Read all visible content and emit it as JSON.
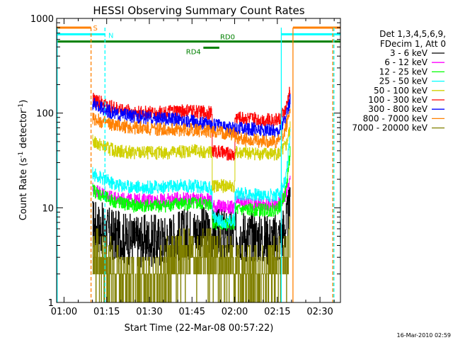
{
  "chart_data": {
    "type": "line",
    "title": "HESSI Observing Summary Count Rates",
    "xlabel": "Start Time (22-Mar-08 00:57:22)",
    "ylabel_main": "Count Rate (s",
    "ylabel_sup1": "-1",
    "ylabel_mid": " detector",
    "ylabel_sup2": "-1",
    "ylabel_end": ")",
    "yscale": "log",
    "ylim": [
      1,
      1000
    ],
    "xlim_minutes": [
      57.4,
      157.2
    ],
    "x_ticks": [
      {
        "min": 60,
        "label": "01:00"
      },
      {
        "min": 75,
        "label": "01:15"
      },
      {
        "min": 90,
        "label": "01:30"
      },
      {
        "min": 105,
        "label": "01:45"
      },
      {
        "min": 120,
        "label": "02:00"
      },
      {
        "min": 135,
        "label": "02:15"
      },
      {
        "min": 150,
        "label": "02:30"
      }
    ],
    "y_ticks": [
      {
        "value": 1,
        "label": "1"
      },
      {
        "value": 10,
        "label": "10"
      },
      {
        "value": 100,
        "label": "100"
      },
      {
        "value": 1000,
        "label": "1000"
      }
    ],
    "legend": {
      "header1": "Det 1,3,4,5,6,9,",
      "header2": "FDecim 1, Att 0",
      "placement": "right"
    },
    "series": [
      {
        "name": "3 - 6 keV",
        "color": "#000000",
        "points": [
          [
            70,
            6.8
          ],
          [
            74,
            5.8
          ],
          [
            78,
            5.0
          ],
          [
            85,
            4.5
          ],
          [
            95,
            4.5
          ],
          [
            100,
            5.0
          ],
          [
            105,
            5.5
          ],
          [
            112,
            5.5
          ],
          [
            115,
            5.2
          ],
          [
            118,
            5.0
          ],
          [
            120,
            5.5
          ],
          [
            125,
            5.0
          ],
          [
            130,
            4.8
          ],
          [
            134,
            4.5
          ],
          [
            136,
            5.0
          ],
          [
            138,
            6.5
          ],
          [
            139.5,
            10
          ]
        ]
      },
      {
        "name": "6 - 12 keV",
        "color": "#ff00ff",
        "points": [
          [
            70,
            16
          ],
          [
            74,
            14
          ],
          [
            78,
            12.5
          ],
          [
            85,
            12
          ],
          [
            95,
            12
          ],
          [
            100,
            12.5
          ],
          [
            105,
            12.5
          ],
          [
            112,
            12
          ],
          [
            112.5,
            10.5
          ],
          [
            120,
            10
          ],
          [
            120.5,
            11.5
          ],
          [
            125,
            11
          ],
          [
            130,
            11
          ],
          [
            134,
            10.5
          ],
          [
            136,
            11.5
          ],
          [
            138,
            14
          ],
          [
            139.5,
            20
          ]
        ]
      },
      {
        "name": "12 - 25 keV",
        "color": "#00ff00",
        "points": [
          [
            70,
            15.5
          ],
          [
            74,
            13
          ],
          [
            78,
            11.5
          ],
          [
            85,
            10.5
          ],
          [
            95,
            10.5
          ],
          [
            100,
            11
          ],
          [
            105,
            11
          ],
          [
            112,
            11
          ],
          [
            112.5,
            7
          ],
          [
            116,
            6.5
          ],
          [
            120,
            7
          ],
          [
            120.5,
            9.5
          ],
          [
            125,
            9.5
          ],
          [
            130,
            9.5
          ],
          [
            134,
            9.5
          ],
          [
            136,
            10.5
          ],
          [
            138,
            15
          ],
          [
            139.5,
            40
          ]
        ]
      },
      {
        "name": "25 - 50 keV",
        "color": "#00ffff",
        "points": [
          [
            70,
            23
          ],
          [
            74,
            20
          ],
          [
            78,
            17.5
          ],
          [
            85,
            16.5
          ],
          [
            95,
            16.5
          ],
          [
            100,
            17
          ],
          [
            105,
            17
          ],
          [
            112,
            16
          ],
          [
            112.5,
            8
          ],
          [
            116,
            7
          ],
          [
            120,
            7.5
          ],
          [
            120.5,
            14
          ],
          [
            125,
            14
          ],
          [
            130,
            13.5
          ],
          [
            134,
            13.5
          ],
          [
            136,
            14.5
          ],
          [
            138,
            20
          ],
          [
            139.5,
            60
          ]
        ]
      },
      {
        "name": "50 - 100 keV",
        "color": "#d0d000",
        "points": [
          [
            70,
            50
          ],
          [
            74,
            44
          ],
          [
            78,
            40
          ],
          [
            85,
            38
          ],
          [
            95,
            38
          ],
          [
            100,
            39
          ],
          [
            105,
            40
          ],
          [
            112,
            38
          ],
          [
            112.5,
            17
          ],
          [
            116,
            17
          ],
          [
            120,
            17
          ],
          [
            120.5,
            38
          ],
          [
            125,
            38
          ],
          [
            130,
            37
          ],
          [
            134,
            37
          ],
          [
            136,
            38
          ],
          [
            138,
            45
          ],
          [
            139.5,
            70
          ]
        ]
      },
      {
        "name": "100 - 300 keV",
        "color": "#ff0000",
        "points": [
          [
            70,
            140
          ],
          [
            74,
            125
          ],
          [
            78,
            112
          ],
          [
            85,
            103
          ],
          [
            92,
            100
          ],
          [
            100,
            105
          ],
          [
            105,
            105
          ],
          [
            112,
            100
          ],
          [
            112.5,
            40
          ],
          [
            116,
            38
          ],
          [
            120,
            36
          ],
          [
            120.5,
            90
          ],
          [
            125,
            88
          ],
          [
            130,
            85
          ],
          [
            134,
            85
          ],
          [
            136,
            88
          ],
          [
            138,
            110
          ],
          [
            139.5,
            180
          ]
        ]
      },
      {
        "name": "300 - 800 keV",
        "color": "#0000ff",
        "points": [
          [
            70,
            125
          ],
          [
            74,
            110
          ],
          [
            78,
            98
          ],
          [
            85,
            92
          ],
          [
            92,
            88
          ],
          [
            100,
            86
          ],
          [
            105,
            82
          ],
          [
            112,
            76
          ],
          [
            116,
            72
          ],
          [
            120,
            68
          ],
          [
            120.5,
            70
          ],
          [
            125,
            68
          ],
          [
            130,
            66
          ],
          [
            134,
            65
          ],
          [
            136,
            68
          ],
          [
            138,
            90
          ],
          [
            139.5,
            140
          ]
        ]
      },
      {
        "name": "800 - 7000 keV",
        "color": "#ff8000",
        "points": [
          [
            70,
            88
          ],
          [
            74,
            80
          ],
          [
            78,
            74
          ],
          [
            85,
            70
          ],
          [
            92,
            68
          ],
          [
            100,
            67
          ],
          [
            105,
            66
          ],
          [
            112,
            64
          ],
          [
            116,
            62
          ],
          [
            120,
            60
          ],
          [
            120.5,
            55
          ],
          [
            125,
            52
          ],
          [
            130,
            50
          ],
          [
            134,
            50
          ],
          [
            136,
            52
          ],
          [
            138,
            70
          ],
          [
            139.5,
            110
          ]
        ]
      },
      {
        "name": "7000 - 20000 keV",
        "color": "#808000",
        "points": [
          [
            70,
            2.9
          ],
          [
            72,
            2.6
          ],
          [
            76,
            2.3
          ],
          [
            80,
            1.8
          ],
          [
            85,
            1.6
          ],
          [
            90,
            1.7
          ],
          [
            94,
            1.8
          ],
          [
            96,
            2.4
          ],
          [
            100,
            2.8
          ],
          [
            105,
            3.0
          ],
          [
            110,
            2.9
          ],
          [
            114,
            2.7
          ],
          [
            118,
            2.2
          ],
          [
            120,
            2.0
          ],
          [
            124,
            1.9
          ],
          [
            128,
            1.8
          ],
          [
            132,
            2.2
          ],
          [
            136,
            2.4
          ],
          [
            138,
            2.8
          ],
          [
            139.5,
            4.0
          ]
        ]
      }
    ],
    "markers": [
      {
        "label": "S",
        "color": "#ff8000",
        "level": "top"
      },
      {
        "label": "N",
        "color": "#00ffff",
        "level": "second"
      },
      {
        "label": "RD0",
        "color": "#008000",
        "level": "green-top"
      },
      {
        "label": "RD4",
        "color": "#008000",
        "level": "green-lower"
      }
    ],
    "bars": {
      "saa_color": "#ff8000",
      "night_color": "#00ffff",
      "decim_color": "#008000",
      "saa_segments": [
        [
          57.4,
          69.5
        ],
        [
          140.5,
          157.2
        ]
      ],
      "night_segments": [
        [
          57.4,
          74.4
        ],
        [
          136.4,
          157.2
        ]
      ],
      "decim_segments": [
        [
          57.4,
          157.2
        ]
      ],
      "rd4_segment": [
        109.0,
        114.6
      ]
    },
    "vlines": [
      {
        "min": 57.6,
        "color": "#00ffff",
        "style": "solid"
      },
      {
        "min": 69.5,
        "color": "#ff8000",
        "style": "dashed"
      },
      {
        "min": 74.4,
        "color": "#00ffff",
        "style": "dashed"
      },
      {
        "min": 136.4,
        "color": "#00ffff",
        "style": "solid"
      },
      {
        "min": 140.5,
        "color": "#ff8000",
        "style": "solid"
      },
      {
        "min": 154.5,
        "color": "#ff8000",
        "style": "dashed"
      },
      {
        "min": 154.9,
        "color": "#00ffff",
        "style": "dashed"
      }
    ]
  },
  "footer": {
    "timestamp": "16-Mar-2010 02:59"
  }
}
